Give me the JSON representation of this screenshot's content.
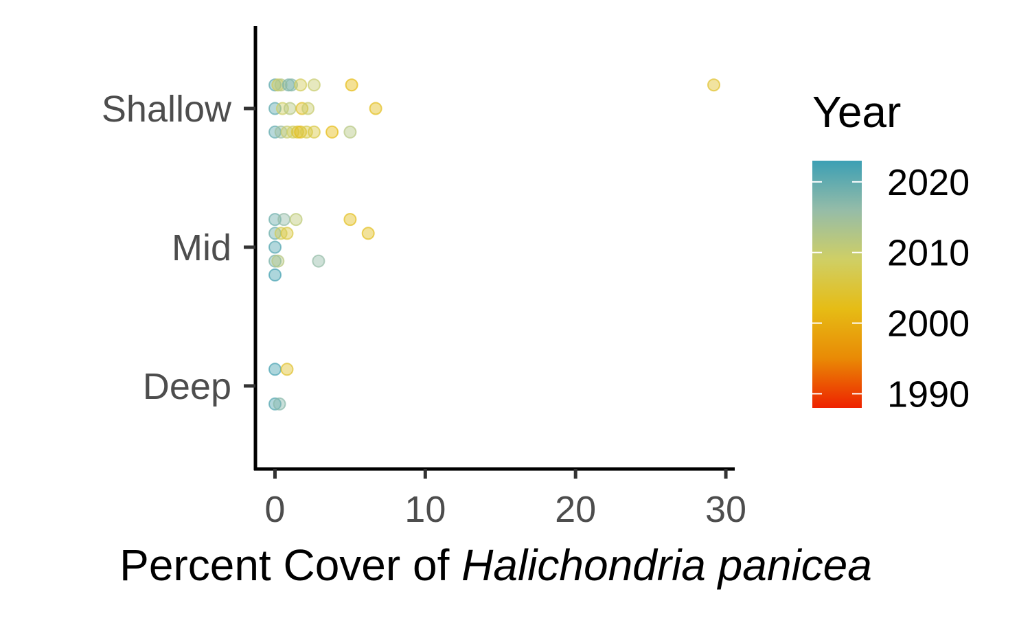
{
  "chart_data": {
    "type": "scatter",
    "xlabel_plain": "Percent Cover of ",
    "xlabel_italic": "Halichondria panicea",
    "ylabel": "",
    "xlim": [
      -1.3,
      30.5
    ],
    "x_ticks": [
      0,
      10,
      20,
      30
    ],
    "x_tick_labels": [
      "0",
      "10",
      "20",
      "30"
    ],
    "categories": [
      "Deep",
      "Mid",
      "Shallow"
    ],
    "grid": false,
    "legend": {
      "title": "Year",
      "position": "right",
      "type": "colorbar",
      "range": [
        1988,
        2023
      ],
      "breaks": [
        1990,
        2000,
        2010,
        2020
      ],
      "break_labels": [
        "1990",
        "2000",
        "2010",
        "2020"
      ],
      "colors": [
        "#ee2200",
        "#e98a05",
        "#e6bc15",
        "#cfcf65",
        "#95bca8",
        "#3c9fb4"
      ]
    },
    "points": [
      {
        "category": "Shallow",
        "jitter": 0.17,
        "x": 0.0,
        "year": 2020
      },
      {
        "category": "Shallow",
        "jitter": 0.17,
        "x": 0.2,
        "year": 2008
      },
      {
        "category": "Shallow",
        "jitter": 0.17,
        "x": 0.4,
        "year": 2012
      },
      {
        "category": "Shallow",
        "jitter": 0.17,
        "x": 0.9,
        "year": 2018
      },
      {
        "category": "Shallow",
        "jitter": 0.17,
        "x": 1.1,
        "year": 2017
      },
      {
        "category": "Shallow",
        "jitter": 0.17,
        "x": 1.7,
        "year": 2008
      },
      {
        "category": "Shallow",
        "jitter": 0.17,
        "x": 2.6,
        "year": 2010
      },
      {
        "category": "Shallow",
        "jitter": 0.17,
        "x": 5.1,
        "year": 2002
      },
      {
        "category": "Shallow",
        "jitter": 0.17,
        "x": 29.2,
        "year": 2004
      },
      {
        "category": "Shallow",
        "jitter": 0.0,
        "x": 0.0,
        "year": 2020
      },
      {
        "category": "Shallow",
        "jitter": 0.0,
        "x": 0.5,
        "year": 2009
      },
      {
        "category": "Shallow",
        "jitter": 0.0,
        "x": 1.0,
        "year": 2012
      },
      {
        "category": "Shallow",
        "jitter": 0.0,
        "x": 1.8,
        "year": 2004
      },
      {
        "category": "Shallow",
        "jitter": 0.0,
        "x": 2.2,
        "year": 2010
      },
      {
        "category": "Shallow",
        "jitter": 0.0,
        "x": 6.7,
        "year": 2003
      },
      {
        "category": "Shallow",
        "jitter": -0.17,
        "x": 0.0,
        "year": 2020
      },
      {
        "category": "Shallow",
        "jitter": -0.17,
        "x": 0.4,
        "year": 2015
      },
      {
        "category": "Shallow",
        "jitter": -0.17,
        "x": 0.8,
        "year": 2010
      },
      {
        "category": "Shallow",
        "jitter": -0.17,
        "x": 1.2,
        "year": 2009
      },
      {
        "category": "Shallow",
        "jitter": -0.17,
        "x": 1.5,
        "year": 2005
      },
      {
        "category": "Shallow",
        "jitter": -0.17,
        "x": 1.7,
        "year": 2003
      },
      {
        "category": "Shallow",
        "jitter": -0.17,
        "x": 2.1,
        "year": 2007
      },
      {
        "category": "Shallow",
        "jitter": -0.17,
        "x": 2.6,
        "year": 2006
      },
      {
        "category": "Shallow",
        "jitter": -0.17,
        "x": 3.8,
        "year": 2002
      },
      {
        "category": "Shallow",
        "jitter": -0.17,
        "x": 5.0,
        "year": 2012
      },
      {
        "category": "Mid",
        "jitter": 0.2,
        "x": 0.0,
        "year": 2019
      },
      {
        "category": "Mid",
        "jitter": 0.2,
        "x": 0.6,
        "year": 2016
      },
      {
        "category": "Mid",
        "jitter": 0.2,
        "x": 1.4,
        "year": 2011
      },
      {
        "category": "Mid",
        "jitter": 0.2,
        "x": 5.0,
        "year": 2003
      },
      {
        "category": "Mid",
        "jitter": 0.1,
        "x": 0.0,
        "year": 2019
      },
      {
        "category": "Mid",
        "jitter": 0.1,
        "x": 0.4,
        "year": 2008
      },
      {
        "category": "Mid",
        "jitter": 0.1,
        "x": 0.8,
        "year": 2006
      },
      {
        "category": "Mid",
        "jitter": 0.1,
        "x": 6.2,
        "year": 2003
      },
      {
        "category": "Mid",
        "jitter": 0.0,
        "x": 0.0,
        "year": 2021
      },
      {
        "category": "Mid",
        "jitter": -0.1,
        "x": 0.0,
        "year": 2018
      },
      {
        "category": "Mid",
        "jitter": -0.1,
        "x": 0.2,
        "year": 2012
      },
      {
        "category": "Mid",
        "jitter": -0.1,
        "x": 2.9,
        "year": 2016
      },
      {
        "category": "Mid",
        "jitter": -0.2,
        "x": 0.0,
        "year": 2022
      },
      {
        "category": "Deep",
        "jitter": 0.12,
        "x": 0.0,
        "year": 2022
      },
      {
        "category": "Deep",
        "jitter": 0.12,
        "x": 0.8,
        "year": 2004
      },
      {
        "category": "Deep",
        "jitter": -0.13,
        "x": 0.0,
        "year": 2021
      },
      {
        "category": "Deep",
        "jitter": -0.13,
        "x": 0.3,
        "year": 2017
      }
    ]
  }
}
